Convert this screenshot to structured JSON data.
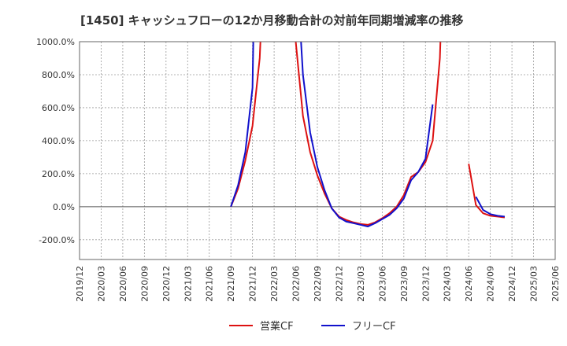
{
  "chart_data": {
    "type": "line",
    "title": "[1450]  キャッシュフローの12か月移動合計の対前年同期増減率の推移",
    "xlabel": "",
    "ylabel": "",
    "ylim": [
      -320,
      1000
    ],
    "yticks": [
      -200,
      0,
      200,
      400,
      600,
      800,
      1000
    ],
    "ytick_labels": [
      "-200.0%",
      "0.0%",
      "200.0%",
      "400.0%",
      "600.0%",
      "800.0%",
      "1000.0%"
    ],
    "xlim": [
      0,
      66
    ],
    "xticks": [
      0,
      3,
      6,
      9,
      12,
      15,
      18,
      21,
      24,
      27,
      30,
      33,
      36,
      39,
      42,
      45,
      48,
      51,
      54,
      57,
      60,
      63,
      66
    ],
    "xtick_labels": [
      "2019/12",
      "2020/03",
      "2020/06",
      "2020/09",
      "2020/12",
      "2021/03",
      "2021/06",
      "2021/09",
      "2021/12",
      "2022/03",
      "2022/06",
      "2022/09",
      "2022/12",
      "2023/03",
      "2023/06",
      "2023/09",
      "2023/12",
      "2024/03",
      "2024/06",
      "2024/09",
      "2024/12",
      "2025/03",
      "2025/06"
    ],
    "grid": true,
    "legend_position": "bottom",
    "series": [
      {
        "name": "営業CF",
        "color": "#dd1111",
        "segments": [
          [
            [
              21,
              0
            ],
            [
              22,
              110
            ],
            [
              23,
              280
            ],
            [
              24,
              490
            ],
            [
              25,
              900
            ],
            [
              25.2,
              1100
            ]
          ],
          [
            [
              29.8,
              1100
            ],
            [
              30,
              1000
            ],
            [
              31,
              550
            ],
            [
              32,
              330
            ],
            [
              33,
              190
            ],
            [
              34,
              80
            ],
            [
              35,
              -10
            ],
            [
              36,
              -60
            ],
            [
              37,
              -80
            ],
            [
              38,
              -95
            ],
            [
              39,
              -105
            ],
            [
              40,
              -110
            ],
            [
              41,
              -95
            ],
            [
              42,
              -70
            ],
            [
              43,
              -40
            ],
            [
              44,
              0
            ],
            [
              45,
              70
            ],
            [
              46,
              180
            ],
            [
              47,
              210
            ],
            [
              48,
              270
            ],
            [
              49,
              400
            ],
            [
              50,
              900
            ],
            [
              50.15,
              1100
            ]
          ],
          [
            [
              54,
              260
            ],
            [
              55,
              10
            ],
            [
              56,
              -40
            ],
            [
              57,
              -55
            ],
            [
              58,
              -60
            ],
            [
              59,
              -65
            ]
          ]
        ]
      },
      {
        "name": "フリーCF",
        "color": "#1111cc",
        "segments": [
          [
            [
              21,
              0
            ],
            [
              22,
              130
            ],
            [
              23,
              330
            ],
            [
              24,
              720
            ],
            [
              24.15,
              1100
            ]
          ],
          [
            [
              30.6,
              1100
            ],
            [
              31,
              800
            ],
            [
              32,
              450
            ],
            [
              33,
              240
            ],
            [
              34,
              100
            ],
            [
              35,
              -10
            ],
            [
              36,
              -65
            ],
            [
              37,
              -90
            ],
            [
              38,
              -100
            ],
            [
              39,
              -110
            ],
            [
              40,
              -120
            ],
            [
              41,
              -100
            ],
            [
              42,
              -75
            ],
            [
              43,
              -50
            ],
            [
              44,
              -10
            ],
            [
              45,
              50
            ],
            [
              46,
              160
            ],
            [
              47,
              210
            ],
            [
              48,
              290
            ],
            [
              49,
              620
            ]
          ],
          [
            [
              55,
              60
            ],
            [
              56,
              -20
            ],
            [
              57,
              -45
            ],
            [
              58,
              -55
            ],
            [
              59,
              -60
            ]
          ]
        ]
      }
    ]
  }
}
